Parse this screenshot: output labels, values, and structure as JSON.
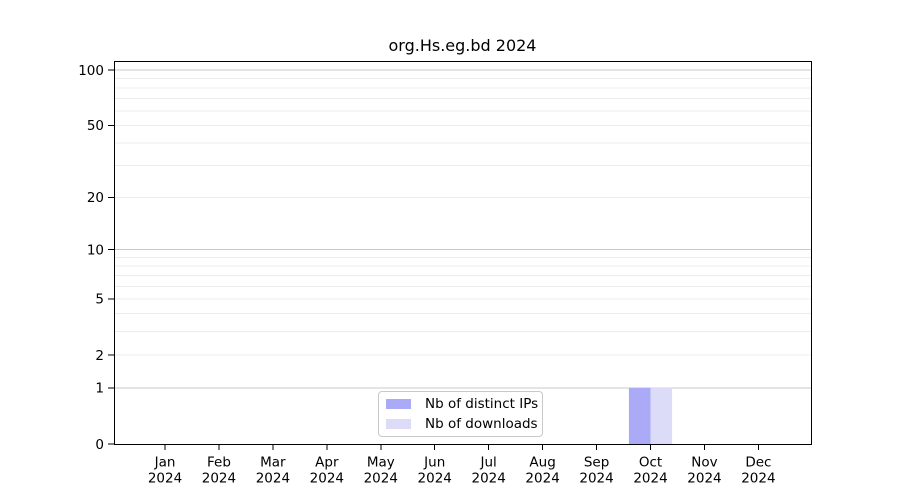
{
  "chart_data": {
    "type": "bar",
    "title": "org.Hs.eg.bd 2024",
    "categories": [
      "Jan",
      "Feb",
      "Mar",
      "Apr",
      "May",
      "Jun",
      "Jul",
      "Aug",
      "Sep",
      "Oct",
      "Nov",
      "Dec"
    ],
    "year": "2024",
    "series": [
      {
        "name": "Nb of distinct IPs",
        "color": "#aaaaf6",
        "values": [
          0,
          0,
          0,
          0,
          0,
          0,
          0,
          0,
          0,
          1,
          0,
          0
        ]
      },
      {
        "name": "Nb of downloads",
        "color": "#dcdcf9",
        "values": [
          0,
          0,
          0,
          0,
          0,
          0,
          0,
          0,
          0,
          1,
          0,
          0
        ]
      }
    ],
    "yscale": "log10(1+y)",
    "yticks": [
      0,
      1,
      2,
      5,
      10,
      20,
      50,
      100
    ],
    "gridlines": {
      "major": [
        1,
        10,
        100
      ],
      "minor": [
        2,
        3,
        4,
        5,
        6,
        7,
        8,
        9,
        20,
        30,
        40,
        50,
        60,
        70,
        80,
        90
      ]
    },
    "ylim": [
      0,
      112
    ],
    "xlabel": "",
    "ylabel": "",
    "grid": true,
    "legend_position": "lower center"
  },
  "colors": {
    "grid_major": "#c9c9c9",
    "grid_minor": "#ececec",
    "axis": "#000000",
    "legend_border": "#c9c9c9"
  }
}
